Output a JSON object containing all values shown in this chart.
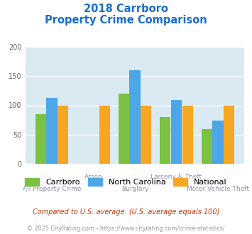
{
  "title_line1": "2018 Carrboro",
  "title_line2": "Property Crime Comparison",
  "categories": [
    "All Property Crime",
    "Arson",
    "Burglary",
    "Larceny & Theft",
    "Motor Vehicle Theft"
  ],
  "carrboro": [
    85,
    0,
    120,
    80,
    60
  ],
  "north_carolina": [
    113,
    0,
    160,
    109,
    74
  ],
  "national": [
    100,
    100,
    100,
    100,
    100
  ],
  "bar_colors": {
    "carrboro": "#7bc142",
    "north_carolina": "#4da6e8",
    "national": "#f5a623"
  },
  "ylim": [
    0,
    200
  ],
  "yticks": [
    0,
    50,
    100,
    150,
    200
  ],
  "bg_color": "#daeaf2",
  "title_color": "#1a6dcc",
  "xlabel_color": "#9090a8",
  "legend_labels": [
    "Carrboro",
    "North Carolina",
    "National"
  ],
  "footnote1": "Compared to U.S. average. (U.S. average equals 100)",
  "footnote2": "© 2025 CityRating.com - https://www.cityrating.com/crime-statistics/",
  "footnote1_color": "#cc3300",
  "footnote2_color": "#999999"
}
